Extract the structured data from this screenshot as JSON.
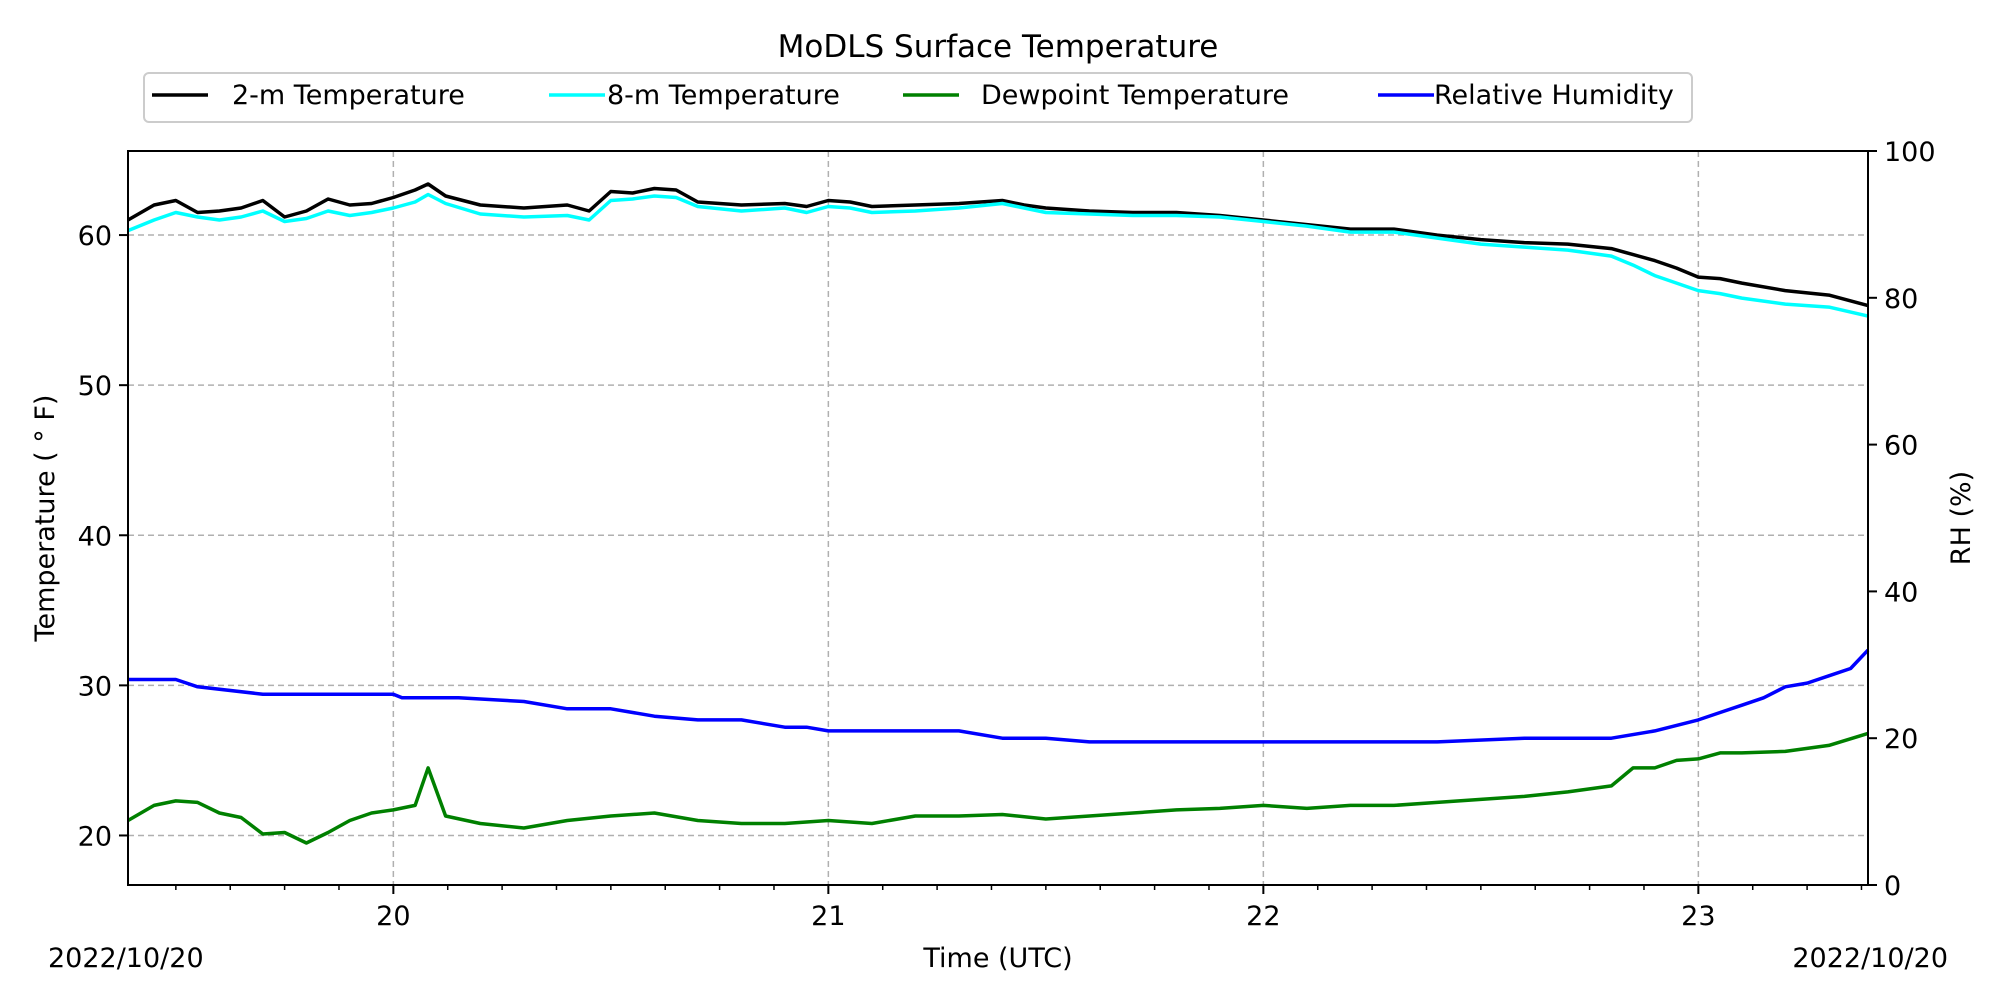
{
  "chart_data": {
    "type": "line",
    "title": "MoDLS Surface Temperature",
    "xlabel": "Time (UTC)",
    "ylabel_left": "Temperature ($^\\circ$F)",
    "ylabel_left_display": "Temperature ( ° F)",
    "ylabel_right": "RH (%)",
    "x_ticks": [
      "20",
      "21",
      "22",
      "23"
    ],
    "x_tick_values": [
      20,
      21,
      22,
      23
    ],
    "x_range": [
      19.39,
      23.39
    ],
    "date_left": "2022/10/20",
    "date_right": "2022/10/20",
    "y_left_range": [
      16.7,
      65.6
    ],
    "y_left_ticks": [
      "20",
      "30",
      "40",
      "50",
      "60"
    ],
    "y_left_tick_values": [
      20,
      30,
      40,
      50,
      60
    ],
    "y_right_range": [
      0,
      100
    ],
    "y_right_ticks": [
      "0",
      "20",
      "40",
      "60",
      "80",
      "100"
    ],
    "y_right_tick_values": [
      0,
      20,
      40,
      60,
      80,
      100
    ],
    "grid": true,
    "legend_position": "top-center",
    "series": [
      {
        "name": "2-m Temperature",
        "axis": "left",
        "color": "#000000",
        "x": [
          19.39,
          19.45,
          19.5,
          19.55,
          19.6,
          19.65,
          19.7,
          19.75,
          19.8,
          19.85,
          19.9,
          19.95,
          20.0,
          20.05,
          20.08,
          20.12,
          20.2,
          20.3,
          20.4,
          20.45,
          20.5,
          20.55,
          20.6,
          20.65,
          20.7,
          20.8,
          20.9,
          20.95,
          21.0,
          21.05,
          21.1,
          21.2,
          21.3,
          21.4,
          21.45,
          21.5,
          21.6,
          21.7,
          21.8,
          21.9,
          22.0,
          22.1,
          22.2,
          22.3,
          22.4,
          22.5,
          22.6,
          22.7,
          22.8,
          22.85,
          22.9,
          22.95,
          23.0,
          23.05,
          23.1,
          23.2,
          23.3,
          23.39
        ],
        "values": [
          61,
          62,
          62.3,
          61.5,
          61.6,
          61.8,
          62.3,
          61.2,
          61.6,
          62.4,
          62.0,
          62.1,
          62.5,
          63.0,
          63.4,
          62.6,
          62.0,
          61.8,
          62.0,
          61.6,
          62.9,
          62.8,
          63.1,
          63.0,
          62.2,
          62.0,
          62.1,
          61.9,
          62.3,
          62.2,
          61.9,
          62.0,
          62.1,
          62.3,
          62.0,
          61.8,
          61.6,
          61.5,
          61.5,
          61.3,
          61.0,
          60.7,
          60.4,
          60.4,
          60.0,
          59.7,
          59.5,
          59.4,
          59.1,
          58.7,
          58.3,
          57.8,
          57.2,
          57.1,
          56.8,
          56.3,
          56.0,
          55.3
        ]
      },
      {
        "name": "8-m Temperature",
        "axis": "left",
        "color": "#00ffff",
        "x": [
          19.39,
          19.45,
          19.5,
          19.55,
          19.6,
          19.65,
          19.7,
          19.75,
          19.8,
          19.85,
          19.9,
          19.95,
          20.0,
          20.05,
          20.08,
          20.12,
          20.2,
          20.3,
          20.4,
          20.45,
          20.5,
          20.55,
          20.6,
          20.65,
          20.7,
          20.8,
          20.9,
          20.95,
          21.0,
          21.05,
          21.1,
          21.2,
          21.3,
          21.4,
          21.45,
          21.5,
          21.6,
          21.7,
          21.8,
          21.9,
          22.0,
          22.1,
          22.2,
          22.3,
          22.4,
          22.5,
          22.6,
          22.7,
          22.8,
          22.85,
          22.9,
          22.95,
          23.0,
          23.05,
          23.1,
          23.2,
          23.3,
          23.39
        ],
        "values": [
          60.3,
          61.0,
          61.5,
          61.2,
          61.0,
          61.2,
          61.6,
          60.9,
          61.1,
          61.6,
          61.3,
          61.5,
          61.8,
          62.2,
          62.7,
          62.1,
          61.4,
          61.2,
          61.3,
          61.0,
          62.3,
          62.4,
          62.6,
          62.5,
          61.9,
          61.6,
          61.8,
          61.5,
          61.9,
          61.8,
          61.5,
          61.6,
          61.8,
          62.1,
          61.8,
          61.5,
          61.4,
          61.3,
          61.3,
          61.2,
          60.9,
          60.6,
          60.2,
          60.2,
          59.8,
          59.4,
          59.2,
          59.0,
          58.6,
          58.0,
          57.3,
          56.8,
          56.3,
          56.1,
          55.8,
          55.4,
          55.2,
          54.6
        ]
      },
      {
        "name": "Dewpoint Temperature",
        "axis": "left",
        "color": "#008000",
        "x": [
          19.39,
          19.45,
          19.5,
          19.55,
          19.6,
          19.65,
          19.7,
          19.75,
          19.8,
          19.85,
          19.9,
          19.95,
          20.0,
          20.05,
          20.08,
          20.12,
          20.2,
          20.3,
          20.4,
          20.5,
          20.6,
          20.7,
          20.8,
          20.9,
          21.0,
          21.1,
          21.2,
          21.3,
          21.4,
          21.5,
          21.6,
          21.7,
          21.8,
          21.9,
          22.0,
          22.1,
          22.2,
          22.3,
          22.4,
          22.5,
          22.6,
          22.7,
          22.8,
          22.85,
          22.9,
          22.95,
          23.0,
          23.05,
          23.1,
          23.2,
          23.3,
          23.39
        ],
        "values": [
          21,
          22,
          22.3,
          22.2,
          21.5,
          21.2,
          20.1,
          20.2,
          19.5,
          20.2,
          21.0,
          21.5,
          21.7,
          22.0,
          24.5,
          21.3,
          20.8,
          20.5,
          21.0,
          21.3,
          21.5,
          21.0,
          20.8,
          20.8,
          21.0,
          20.8,
          21.3,
          21.3,
          21.4,
          21.1,
          21.3,
          21.5,
          21.7,
          21.8,
          22.0,
          21.8,
          22.0,
          22.0,
          22.2,
          22.4,
          22.6,
          22.9,
          23.3,
          24.5,
          24.5,
          25.0,
          25.1,
          25.5,
          25.5,
          25.6,
          26.0,
          26.8
        ]
      },
      {
        "name": "Relative Humidity",
        "axis": "right",
        "color": "#0000ff",
        "x": [
          19.39,
          19.5,
          19.55,
          19.7,
          19.9,
          20.0,
          20.02,
          20.15,
          20.3,
          20.4,
          20.5,
          20.6,
          20.7,
          20.8,
          20.9,
          20.95,
          21.0,
          21.2,
          21.3,
          21.4,
          21.5,
          21.6,
          21.7,
          21.8,
          21.9,
          22.0,
          22.2,
          22.4,
          22.6,
          22.8,
          22.9,
          23.0,
          23.05,
          23.1,
          23.15,
          23.2,
          23.25,
          23.3,
          23.35,
          23.39
        ],
        "values": [
          28,
          28,
          27,
          26,
          26,
          26,
          25.5,
          25.5,
          25,
          24,
          24,
          23,
          22.5,
          22.5,
          21.5,
          21.5,
          21,
          21,
          21,
          20,
          20,
          19.5,
          19.5,
          19.5,
          19.5,
          19.5,
          19.5,
          19.5,
          20,
          20,
          21,
          22.5,
          23.5,
          24.5,
          25.5,
          27,
          27.5,
          28.5,
          29.5,
          32
        ]
      }
    ]
  }
}
